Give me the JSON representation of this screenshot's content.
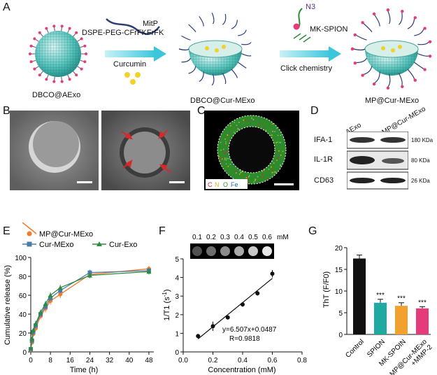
{
  "panels": {
    "a": "A",
    "b": "B",
    "c": "C",
    "d": "D",
    "e": "E",
    "f": "F",
    "g": "G"
  },
  "schematic": {
    "reagent_mitp": "MitP",
    "reagent_peptide": "DSPE-PEG-CFrFKFrFK",
    "reagent_curcumin": "Curcumin",
    "reagent_spion": "MK-SPION",
    "reagent_n3": "N3",
    "step2": "Click chemistry",
    "label1": "DBCO@AExo",
    "label2": "DBCO@Cur-MExo",
    "label3": "MP@Cur-MExo"
  },
  "fluorescence": {
    "legend_c": "C",
    "legend_n": "N",
    "legend_o": "O",
    "legend_fe": "Fe"
  },
  "western": {
    "lanes": [
      "AExo",
      "MP@Cur-MExo"
    ],
    "proteins": [
      "IFA-1",
      "IL-1R",
      "CD63"
    ],
    "sizes": [
      "180 KDa",
      "80 KDa",
      "26 KDa"
    ]
  },
  "colors": {
    "mp": "#f47a2c",
    "cur": "#4a7ca8",
    "exo": "#2e8b3e",
    "black": "#111111",
    "teal": "#1fa9a0",
    "orange": "#f3a12e",
    "pink": "#e53b7a"
  },
  "chart_data": [
    {
      "type": "line",
      "panel": "E",
      "xlabel": "Time (h)",
      "ylabel": "Cumulative release (%)",
      "xlim": [
        0,
        50
      ],
      "ylim": [
        0,
        100
      ],
      "xticks": [
        0,
        8,
        16,
        24,
        32,
        40,
        48
      ],
      "yticks": [
        0,
        20,
        40,
        60,
        80,
        100
      ],
      "x": [
        0,
        0.5,
        1,
        2,
        4,
        6,
        8,
        12,
        24,
        48
      ],
      "series": [
        {
          "name": "MP@Cur-MExo",
          "values": [
            2,
            10,
            19,
            25,
            38,
            46,
            54,
            61,
            82,
            88
          ],
          "err": [
            1,
            2,
            3,
            3,
            3,
            4,
            4,
            4,
            3,
            3
          ]
        },
        {
          "name": "Cur-MExo",
          "values": [
            3,
            12,
            21,
            28,
            40,
            48,
            57,
            65,
            84,
            86
          ],
          "err": [
            1,
            2,
            3,
            3,
            3,
            3,
            3,
            3,
            3,
            3
          ]
        },
        {
          "name": "Cur-Exo",
          "values": [
            4,
            14,
            23,
            30,
            42,
            51,
            60,
            68,
            81,
            85
          ],
          "err": [
            1,
            2,
            2,
            3,
            3,
            3,
            3,
            3,
            3,
            3
          ]
        }
      ]
    },
    {
      "type": "scatter",
      "panel": "F",
      "xlabel": "Concentration (mM)",
      "ylabel": "1/T1 (s-1)",
      "ylabel_main": "1/T1 (s",
      "ylabel_sup": "-1",
      "ylabel_close": ")",
      "xlim": [
        0,
        0.8
      ],
      "ylim": [
        0,
        5
      ],
      "xticks": [
        "0.0",
        "0.2",
        "0.4",
        "0.6",
        "0.8"
      ],
      "yticks": [
        "0",
        "1",
        "2",
        "3",
        "4",
        "5"
      ],
      "x": [
        0.1,
        0.2,
        0.3,
        0.4,
        0.5,
        0.6
      ],
      "values": [
        0.85,
        1.38,
        1.85,
        2.55,
        3.15,
        4.2
      ],
      "err": [
        0.12,
        0.25,
        0.08,
        0.12,
        0.12,
        0.2
      ],
      "fit_slope": 6.507,
      "fit_intercept": 0.0487,
      "equation": "y=6.507x+0.0487",
      "r_value": "R=0.9818",
      "mri_labels": [
        "0.1",
        "0.2",
        "0.3",
        "0.4",
        "0.5",
        "0.6"
      ],
      "mri_unit": "mM"
    },
    {
      "type": "bar",
      "panel": "G",
      "ylabel": "ThT (F/F0)",
      "ylim": [
        0,
        20
      ],
      "yticks": [
        "0",
        "5",
        "10",
        "15",
        "20"
      ],
      "categories": [
        "Control",
        "SPION",
        "MK-SPOIN",
        "MP@Cur-MExo\n+MMP-2"
      ],
      "category_lines": [
        [
          "Control"
        ],
        [
          "SPION"
        ],
        [
          "MK-SPOIN"
        ],
        [
          "MP@Cur-MExo",
          "+MMP-2"
        ]
      ],
      "values": [
        17.5,
        7.3,
        6.6,
        6.0
      ],
      "err": [
        0.8,
        0.8,
        0.7,
        0.4
      ],
      "significance": [
        "",
        "***",
        "***",
        "***"
      ]
    }
  ],
  "scale_bar": ""
}
